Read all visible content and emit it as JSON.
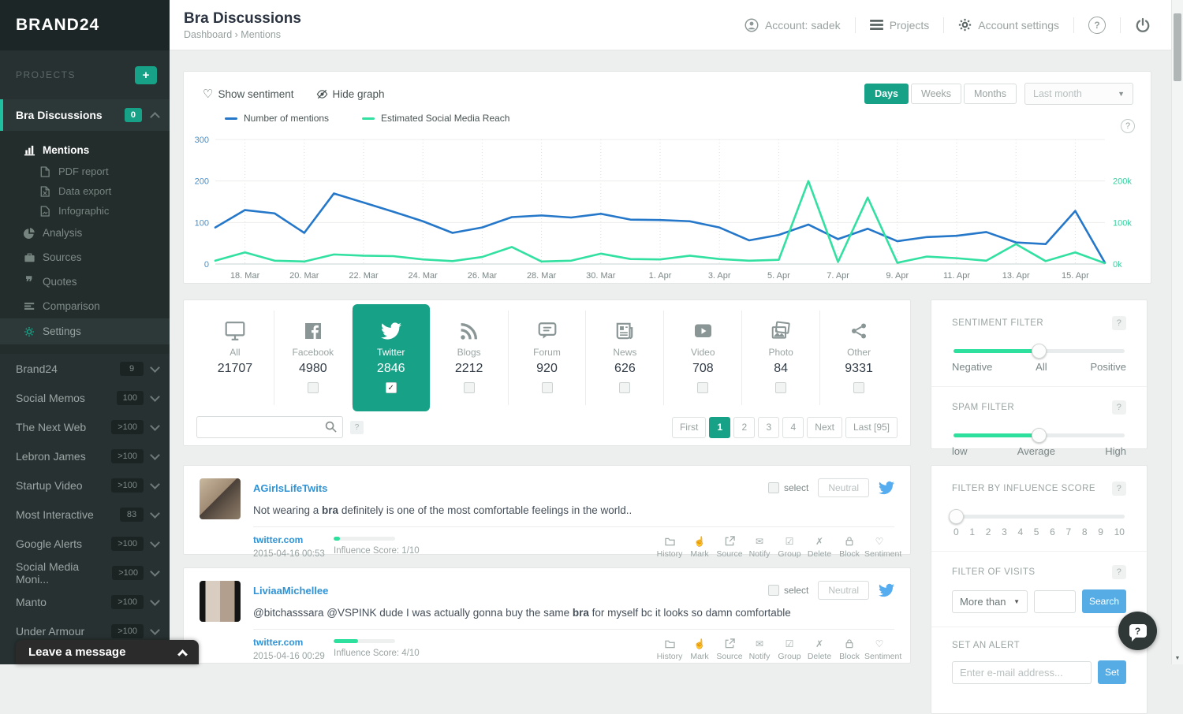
{
  "app": {
    "logo": "BRAND24",
    "help_glyph": "?",
    "accent": "#17a288",
    "mint": "#2ee09e"
  },
  "icons": {
    "heart": "♡",
    "envelope": "✉",
    "check_square": "☑",
    "cross": "✗",
    "hand": "☝",
    "caret_down": "▼",
    "plus": "+",
    "check": "✓",
    "quote": "❞",
    "breadcrumb_sep": "›"
  },
  "header": {
    "title": "Bra Discussions",
    "breadcrumb": [
      "Dashboard",
      "Mentions"
    ],
    "account": "Account: sadek",
    "projects": "Projects",
    "account_settings": "Account settings"
  },
  "sidebar": {
    "projects_label": "PROJECTS",
    "active_project": {
      "name": "Bra Discussions",
      "badge": "0"
    },
    "menu": [
      {
        "label": "Mentions"
      },
      {
        "label": "PDF report"
      },
      {
        "label": "Data export"
      },
      {
        "label": "Infographic"
      },
      {
        "label": "Analysis"
      },
      {
        "label": "Sources"
      },
      {
        "label": "Quotes"
      },
      {
        "label": "Comparison"
      },
      {
        "label": "Settings"
      }
    ],
    "projects": [
      {
        "name": "Brand24",
        "badge": "9"
      },
      {
        "name": "Social Memos",
        "badge": "100"
      },
      {
        "name": "The Next Web",
        "badge": ">100"
      },
      {
        "name": "Lebron James",
        "badge": ">100"
      },
      {
        "name": "Startup Video",
        "badge": ">100"
      },
      {
        "name": "Most Interactive",
        "badge": "83"
      },
      {
        "name": "Google Alerts",
        "badge": ">100"
      },
      {
        "name": "Social Media Moni...",
        "badge": ">100"
      },
      {
        "name": "Manto",
        "badge": ">100"
      },
      {
        "name": "Under Armour",
        "badge": ">100"
      }
    ],
    "chat_bar": "Leave a message"
  },
  "toolbar": {
    "show_sentiment": "Show sentiment",
    "hide_graph": "Hide graph",
    "tabs": [
      "Days",
      "Weeks",
      "Months"
    ],
    "active_tab": "Days",
    "range_select": "Last month"
  },
  "chart_data": {
    "type": "line",
    "x": [
      "17. Mar",
      "18. Mar",
      "19. Mar",
      "20. Mar",
      "21. Mar",
      "22. Mar",
      "23. Mar",
      "24. Mar",
      "25. Mar",
      "26. Mar",
      "27. Mar",
      "28. Mar",
      "29. Mar",
      "30. Mar",
      "31. Mar",
      "1. Apr",
      "2. Apr",
      "3. Apr",
      "4. Apr",
      "5. Apr",
      "6. Apr",
      "7. Apr",
      "8. Apr",
      "9. Apr",
      "10. Apr",
      "11. Apr",
      "12. Apr",
      "13. Apr",
      "14. Apr",
      "15. Apr",
      "16. Apr"
    ],
    "labeled_every": 2,
    "series": [
      {
        "name": "Number of mentions",
        "color": "#2577c9",
        "axis": "left",
        "values": [
          88,
          130,
          122,
          75,
          170,
          148,
          126,
          103,
          75,
          88,
          113,
          117,
          112,
          121,
          107,
          106,
          103,
          88,
          57,
          70,
          95,
          60,
          85,
          55,
          65,
          68,
          77,
          52,
          48,
          128,
          3
        ]
      },
      {
        "name": "Estimated Social Media Reach",
        "color": "#32e0a1",
        "axis": "right",
        "unit": "thousands",
        "values": [
          8,
          28,
          8,
          6,
          23,
          20,
          19,
          11,
          7,
          17,
          41,
          6,
          8,
          25,
          12,
          11,
          20,
          12,
          8,
          10,
          200,
          5,
          160,
          3,
          18,
          14,
          8,
          48,
          7,
          28,
          2
        ]
      }
    ],
    "left_axis": {
      "max": 300,
      "ticks": [
        0,
        100,
        200,
        300
      ]
    },
    "right_axis": {
      "ticks": [
        0,
        100,
        200
      ],
      "unit": "k"
    },
    "grid": true,
    "legend_position": "top"
  },
  "sources": {
    "items": [
      {
        "label": "All",
        "count": "21707"
      },
      {
        "label": "Facebook",
        "count": "4980"
      },
      {
        "label": "Twitter",
        "count": "2846",
        "active": true,
        "checked": true
      },
      {
        "label": "Blogs",
        "count": "2212"
      },
      {
        "label": "Forum",
        "count": "920"
      },
      {
        "label": "News",
        "count": "626"
      },
      {
        "label": "Video",
        "count": "708"
      },
      {
        "label": "Photo",
        "count": "84"
      },
      {
        "label": "Other",
        "count": "9331"
      }
    ]
  },
  "search": {
    "value": "",
    "placeholder": ""
  },
  "pagination": {
    "first": "First",
    "pages": [
      "1",
      "2",
      "3",
      "4"
    ],
    "active_page": "1",
    "next": "Next",
    "last": "Last [95]"
  },
  "mentions": [
    {
      "username": "AGirlsLifeTwits",
      "text_before": "Not wearing a ",
      "text_bold": "bra",
      "text_after": " definitely is one of the most comfortable feelings in the world..",
      "source": "twitter.com",
      "date": "2015-04-16 00:53",
      "influence_label": "Influence Score: 1/10",
      "influence_pct": 10,
      "select_label": "select",
      "sentiment": "Neutral"
    },
    {
      "username": "LiviaaMichellee",
      "text_before": "@bitchasssara @VSPINK dude I was actually gonna buy the same ",
      "text_bold": "bra",
      "text_after": " for myself bc it looks so damn comfortable",
      "source": "twitter.com",
      "date": "2015-04-16 00:29",
      "influence_label": "Influence Score: 4/10",
      "influence_pct": 40,
      "select_label": "select",
      "sentiment": "Neutral"
    }
  ],
  "mention_actions": [
    "History",
    "Mark",
    "Source",
    "Notify",
    "Group",
    "Delete",
    "Block",
    "Sentiment"
  ],
  "filters": {
    "sentiment": {
      "title": "SENTIMENT FILTER",
      "labels": [
        "Negative",
        "All",
        "Positive"
      ],
      "value_pct": 50
    },
    "spam": {
      "title": "SPAM FILTER",
      "labels": [
        "low",
        "Average",
        "High"
      ],
      "value_pct": 50
    },
    "influence": {
      "title": "FILTER BY INFLUENCE SCORE",
      "scale": [
        "0",
        "1",
        "2",
        "3",
        "4",
        "5",
        "6",
        "7",
        "8",
        "9",
        "10"
      ],
      "value_pct": 2
    },
    "visits": {
      "title": "FILTER OF VISITS",
      "operator": "More than",
      "value": "",
      "button": "Search"
    },
    "alert": {
      "title": "SET AN ALERT",
      "placeholder": "Enter e-mail address...",
      "button": "Set"
    }
  }
}
